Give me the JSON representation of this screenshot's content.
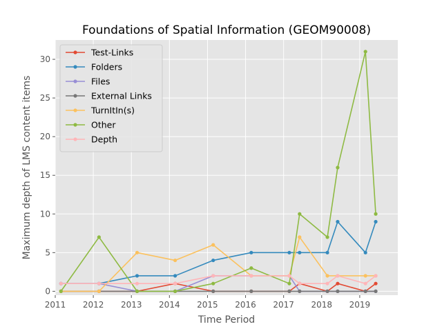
{
  "chart_data": {
    "type": "line",
    "title": "Foundations of Spatial Information (GEOM90008)",
    "xlabel": "Time Period",
    "ylabel": "Maximum depth of LMS content items",
    "xlim": [
      2011,
      2020
    ],
    "ylim": [
      -0.5,
      32.5
    ],
    "xticks": [
      "2011",
      "2012",
      "2013",
      "2014",
      "2015",
      "2016",
      "2017",
      "2018",
      "2019"
    ],
    "yticks": [
      "0",
      "5",
      "10",
      "15",
      "20",
      "25",
      "30"
    ],
    "grid": true,
    "legend_position": "top-left",
    "x": [
      2011.15,
      2012.15,
      2013.15,
      2014.15,
      2015.15,
      2016.15,
      2017.15,
      2017.42,
      2018.15,
      2018.42,
      2019.15,
      2019.42
    ],
    "series": [
      {
        "name": "Test-Links",
        "color": "#e24a33",
        "values": [
          0,
          0,
          0,
          1,
          0,
          0,
          0,
          1,
          0,
          1,
          0,
          1
        ]
      },
      {
        "name": "Folders",
        "color": "#348abd",
        "values": [
          1,
          1,
          2,
          2,
          4,
          5,
          5,
          5,
          5,
          9,
          5,
          9
        ]
      },
      {
        "name": "Files",
        "color": "#988ed5",
        "values": [
          1,
          1,
          0,
          0,
          2,
          2,
          2,
          0,
          0,
          0,
          0,
          0
        ]
      },
      {
        "name": "External Links",
        "color": "#777777",
        "values": [
          0,
          0,
          0,
          0,
          0,
          0,
          0,
          0,
          0,
          0,
          0,
          0
        ]
      },
      {
        "name": "TurnItIn(s)",
        "color": "#fbc15e",
        "values": [
          0,
          0,
          5,
          4,
          6,
          2,
          2,
          7,
          2,
          2,
          2,
          2
        ]
      },
      {
        "name": "Other",
        "color": "#8eba42",
        "values": [
          0,
          7,
          0,
          0,
          1,
          3,
          1,
          10,
          7,
          16,
          31,
          10
        ]
      },
      {
        "name": "Depth",
        "color": "#ffb5b8",
        "values": [
          1,
          1,
          1,
          1,
          2,
          2,
          2,
          1,
          1,
          2,
          1,
          2
        ]
      }
    ]
  }
}
